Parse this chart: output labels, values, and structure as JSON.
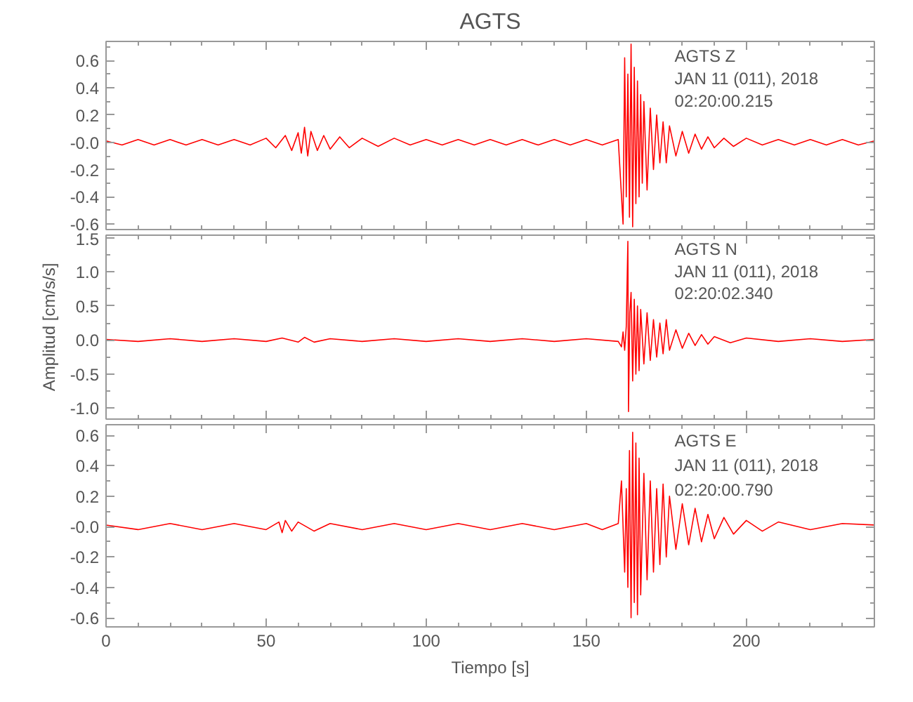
{
  "chart_data": [
    {
      "type": "line",
      "title": "AGTS",
      "tick_labels": "y",
      "xlim": [
        0,
        240
      ],
      "xticks": [
        0,
        50,
        100,
        150,
        200
      ],
      "ylim": [
        -0.64,
        0.74
      ],
      "yticks": [
        0.6,
        0.4,
        0.2,
        {
          "value": 0,
          "label": "-0.0"
        },
        -0.2,
        -0.4,
        -0.6
      ],
      "x": [
        0,
        5,
        10,
        15,
        20,
        25,
        30,
        35,
        40,
        45,
        50,
        53,
        56,
        58,
        60,
        61,
        62,
        63,
        64,
        66,
        68,
        70,
        73,
        76,
        80,
        85,
        90,
        95,
        100,
        105,
        110,
        115,
        120,
        125,
        130,
        135,
        140,
        145,
        150,
        155,
        160,
        161.5,
        162,
        162.5,
        163,
        163.5,
        164,
        164.5,
        165,
        165.5,
        166,
        166.5,
        167,
        167.5,
        168,
        169,
        170,
        171,
        172,
        173,
        174,
        175,
        176,
        178,
        180,
        182,
        184,
        186,
        188,
        190,
        193,
        196,
        200,
        205,
        210,
        215,
        220,
        225,
        230,
        235,
        240
      ],
      "series": [
        {
          "color": "#ff0000",
          "values": [
            0.01,
            -0.02,
            0.02,
            -0.02,
            0.02,
            -0.02,
            0.02,
            -0.02,
            0.02,
            -0.02,
            0.03,
            -0.04,
            0.05,
            -0.06,
            0.07,
            -0.08,
            0.11,
            -0.1,
            0.08,
            -0.06,
            0.05,
            -0.05,
            0.04,
            -0.04,
            0.03,
            -0.03,
            0.03,
            -0.02,
            0.02,
            -0.02,
            0.02,
            -0.02,
            0.02,
            -0.02,
            0.02,
            -0.02,
            0.02,
            -0.02,
            0.02,
            -0.02,
            0.02,
            -0.6,
            0.62,
            -0.4,
            0.5,
            -0.55,
            0.72,
            -0.62,
            0.55,
            -0.45,
            0.45,
            -0.4,
            0.35,
            -0.3,
            0.3,
            -0.35,
            0.25,
            -0.2,
            0.2,
            -0.15,
            0.15,
            -0.15,
            0.12,
            -0.1,
            0.08,
            -0.08,
            0.06,
            -0.05,
            0.04,
            -0.04,
            0.03,
            -0.03,
            0.03,
            -0.02,
            0.02,
            -0.02,
            0.02,
            -0.02,
            0.02,
            -0.02,
            0.01
          ]
        }
      ],
      "annotations": [
        "AGTS   Z",
        "JAN 11 (011), 2018",
        "02:20:00.215"
      ]
    },
    {
      "type": "line",
      "ylabel": "Amplitud [cm/s/s]",
      "tick_labels": "y",
      "xlim": [
        0,
        240
      ],
      "xticks": [
        0,
        50,
        100,
        150,
        200
      ],
      "ylim": [
        -1.16,
        1.54
      ],
      "yticks": [
        {
          "value": -1,
          "label": "-1.0"
        },
        -0.5,
        {
          "value": 0,
          "label": "0.0"
        },
        0.5,
        {
          "value": 1,
          "label": "1.0"
        },
        1.5
      ],
      "x": [
        0,
        10,
        20,
        30,
        40,
        50,
        55,
        60,
        62,
        65,
        70,
        80,
        90,
        100,
        110,
        120,
        130,
        140,
        150,
        160,
        161,
        161.5,
        162,
        162.5,
        163,
        163.2,
        163.6,
        164,
        164.5,
        165,
        165.5,
        166,
        166.5,
        167,
        168,
        169,
        170,
        171,
        172,
        173,
        174,
        175,
        176,
        178,
        180,
        182,
        184,
        186,
        188,
        190,
        195,
        200,
        210,
        220,
        230,
        240
      ],
      "series": [
        {
          "color": "#ff0000",
          "values": [
            0.01,
            -0.02,
            0.02,
            -0.02,
            0.02,
            -0.02,
            0.03,
            -0.03,
            0.04,
            -0.03,
            0.02,
            -0.02,
            0.02,
            -0.02,
            0.02,
            -0.02,
            0.02,
            -0.02,
            0.02,
            -0.02,
            -0.1,
            0.12,
            -0.15,
            0.2,
            1.45,
            -1.05,
            0.4,
            0.7,
            -0.6,
            0.6,
            -0.5,
            0.5,
            -0.45,
            0.45,
            -0.35,
            0.4,
            -0.3,
            0.3,
            -0.25,
            0.25,
            -0.2,
            0.3,
            -0.15,
            0.15,
            -0.12,
            0.1,
            -0.08,
            0.08,
            -0.06,
            0.05,
            -0.04,
            0.03,
            -0.02,
            0.02,
            -0.02,
            0.01
          ]
        }
      ],
      "annotations": [
        "AGTS   N",
        "JAN 11 (011), 2018",
        "02:20:02.340"
      ]
    },
    {
      "type": "line",
      "xlabel": "Tiempo [s]",
      "xlim": [
        0,
        240
      ],
      "xticks": [
        0,
        50,
        100,
        150,
        200
      ],
      "ylim": [
        -0.66,
        0.67
      ],
      "yticks": [
        0.6,
        0.4,
        0.2,
        {
          "value": 0,
          "label": "-0.0"
        },
        -0.2,
        -0.4,
        -0.6
      ],
      "x": [
        0,
        10,
        20,
        30,
        40,
        50,
        54,
        55,
        56,
        58,
        60,
        65,
        70,
        80,
        90,
        100,
        110,
        120,
        130,
        140,
        150,
        155,
        160,
        161,
        162,
        162.5,
        163,
        163.5,
        164,
        164.5,
        165,
        165.5,
        166,
        166.5,
        167,
        168,
        169,
        170,
        171,
        172,
        173,
        174,
        175,
        176,
        178,
        180,
        182,
        184,
        186,
        188,
        190,
        193,
        196,
        200,
        205,
        210,
        220,
        230,
        240
      ],
      "series": [
        {
          "color": "#ff0000",
          "values": [
            0.01,
            -0.02,
            0.02,
            -0.02,
            0.02,
            -0.02,
            0.03,
            -0.04,
            0.04,
            -0.03,
            0.03,
            -0.03,
            0.02,
            -0.02,
            0.02,
            -0.02,
            0.02,
            -0.02,
            0.02,
            -0.02,
            0.02,
            -0.02,
            0.02,
            0.3,
            -0.3,
            0.25,
            -0.4,
            0.5,
            -0.6,
            0.62,
            -0.5,
            0.55,
            -0.58,
            0.45,
            -0.45,
            0.35,
            -0.35,
            0.3,
            -0.3,
            0.25,
            -0.25,
            0.28,
            -0.2,
            0.2,
            -0.15,
            0.15,
            -0.12,
            0.12,
            -0.1,
            0.08,
            -0.08,
            0.06,
            -0.05,
            0.04,
            -0.03,
            0.03,
            -0.02,
            0.02,
            0.01
          ]
        }
      ],
      "annotations": [
        "AGTS   E",
        "JAN 11 (011), 2018",
        "02:20:00.790"
      ]
    }
  ]
}
